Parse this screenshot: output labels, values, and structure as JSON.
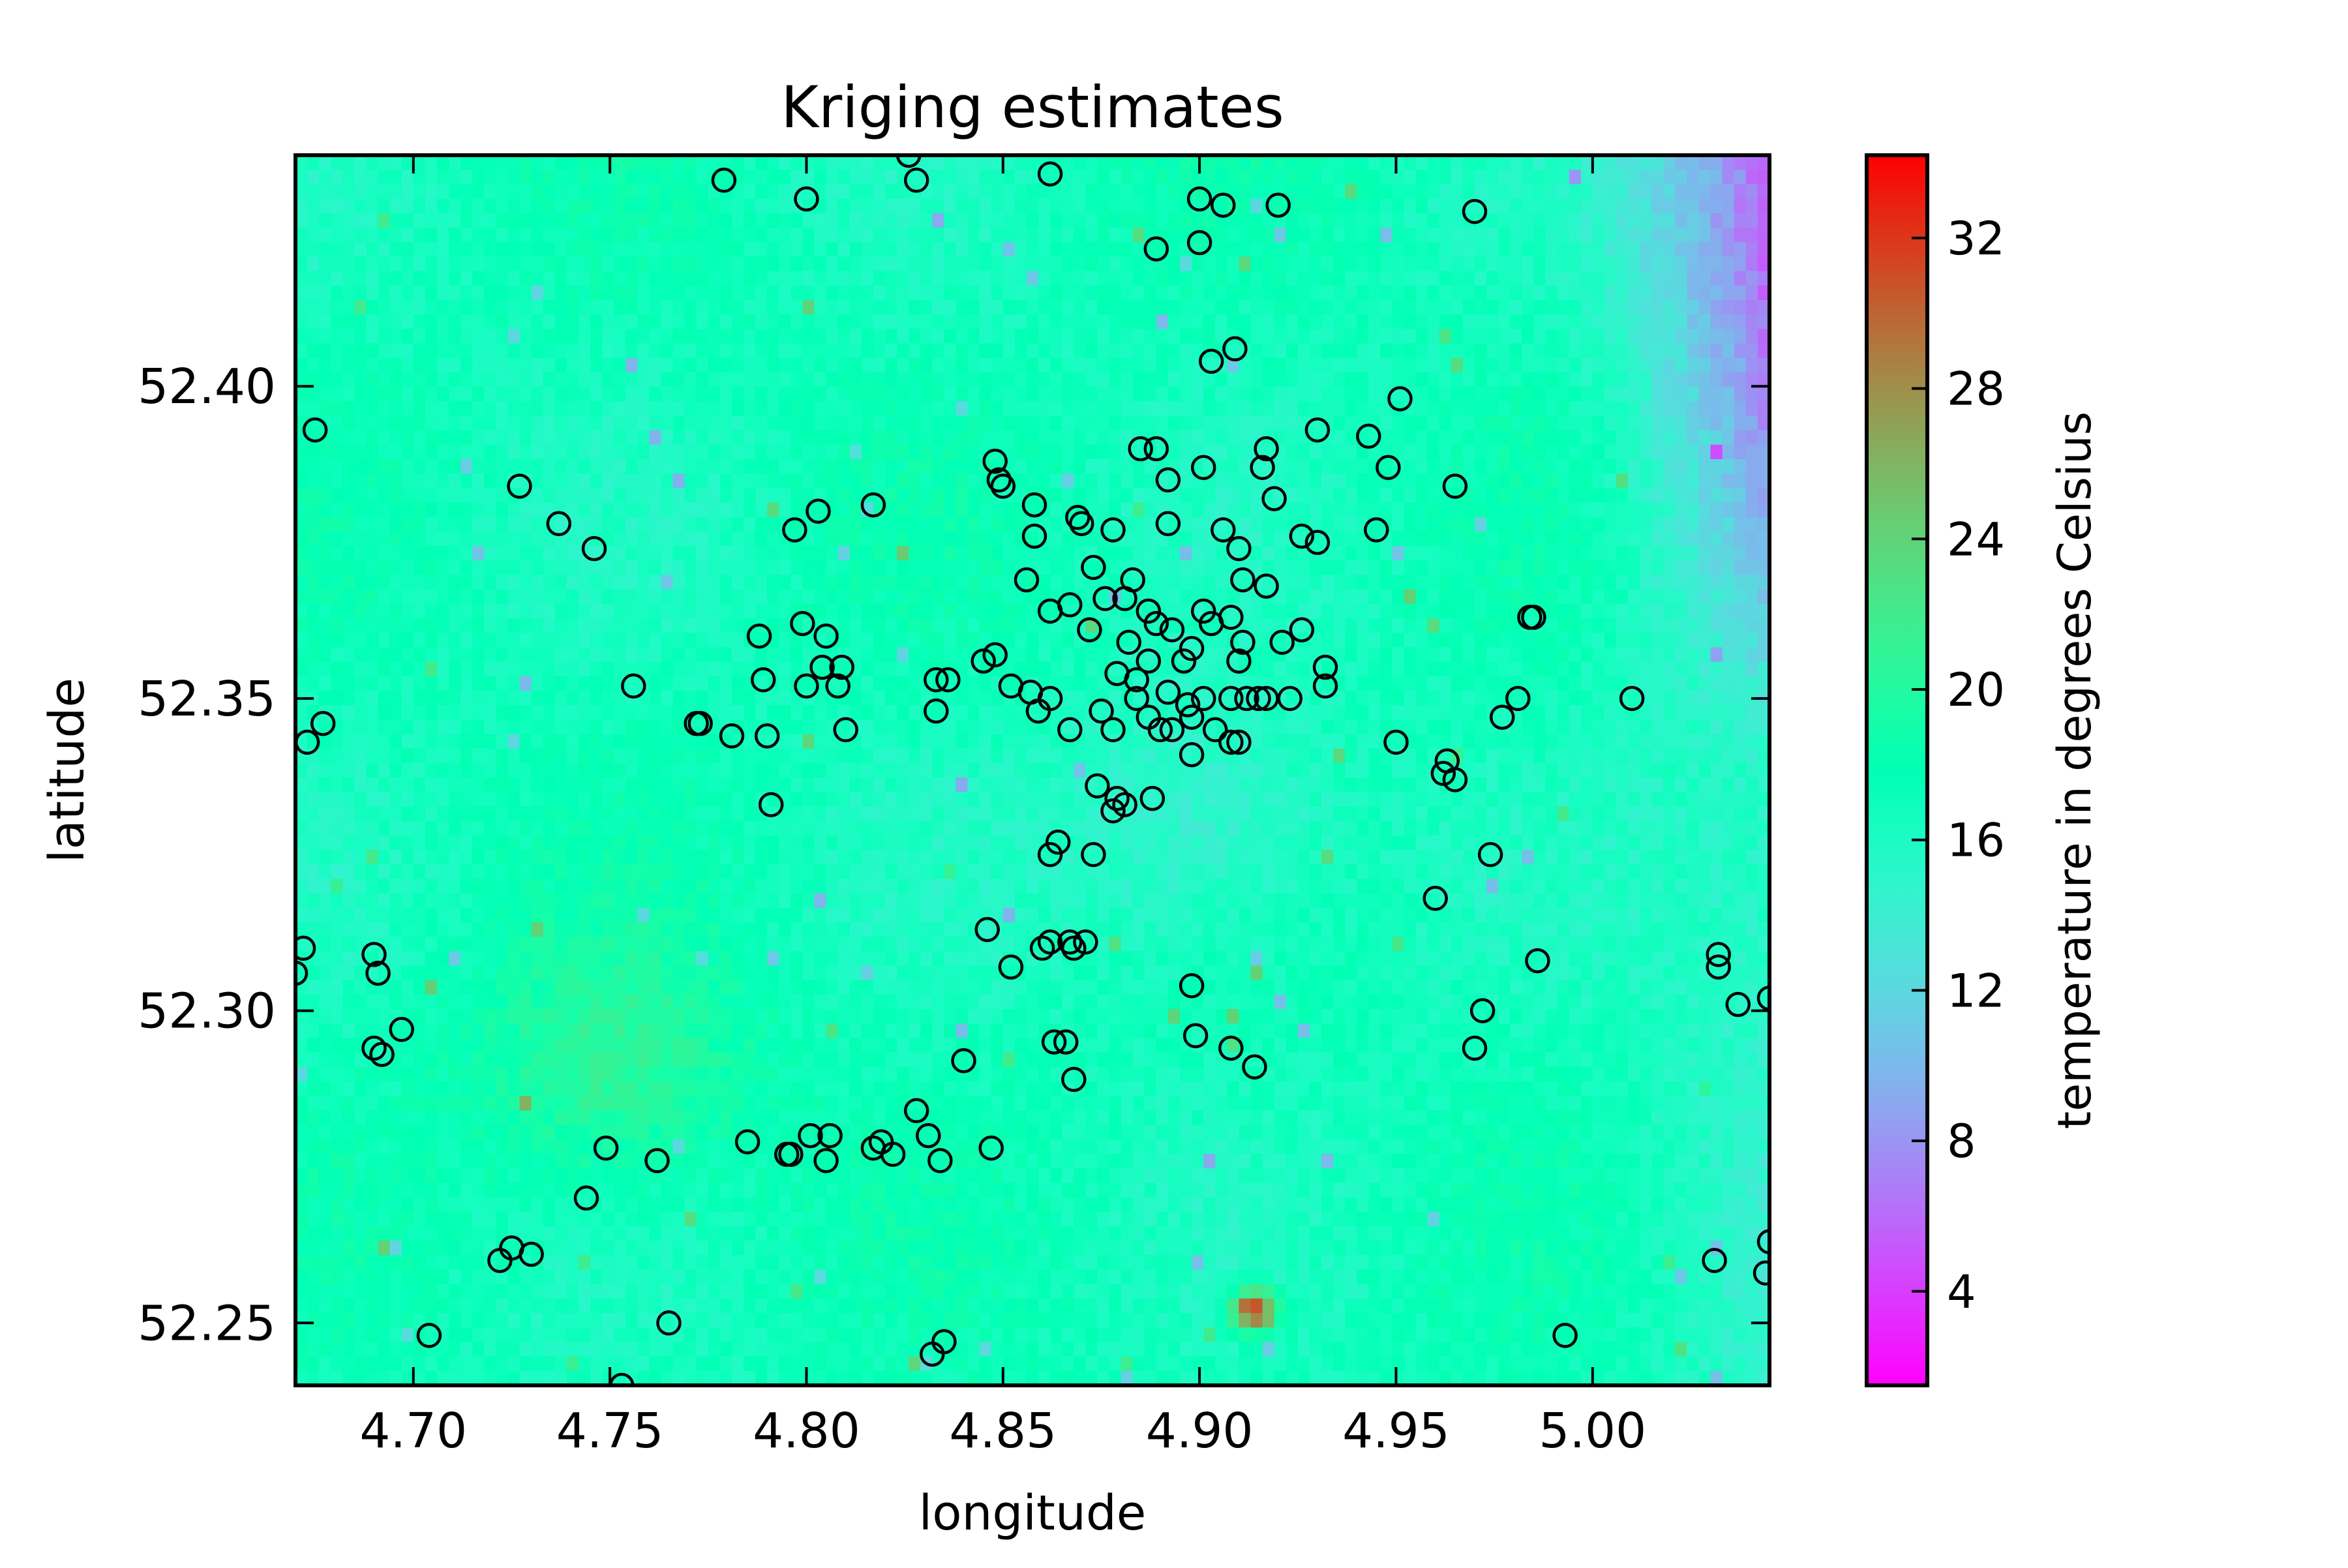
{
  "chart_data": {
    "type": "heatmap",
    "title": "Kriging estimates",
    "xlabel": "longitude",
    "ylabel": "latitude",
    "xlim": [
      4.67,
      5.045
    ],
    "ylim": [
      52.24,
      52.437
    ],
    "xticks": [
      4.7,
      4.75,
      4.8,
      4.85,
      4.9,
      4.95,
      5.0
    ],
    "xtick_labels": [
      "4.70",
      "4.75",
      "4.80",
      "4.85",
      "4.90",
      "4.95",
      "5.00"
    ],
    "yticks": [
      52.25,
      52.3,
      52.35,
      52.4
    ],
    "ytick_labels": [
      "52.25",
      "52.30",
      "52.35",
      "52.40"
    ],
    "grid_resolution": {
      "nx": 125,
      "ny": 85
    },
    "colormap": "rainbow",
    "colorbar": {
      "label": "temperature in degrees Celsius",
      "range": [
        1.5,
        34.2
      ],
      "ticks": [
        4,
        8,
        12,
        16,
        20,
        24,
        28,
        32
      ],
      "tick_labels": [
        "4",
        "8",
        "12",
        "16",
        "20",
        "24",
        "28",
        "32"
      ]
    },
    "field_features": [
      {
        "kind": "cold-region",
        "lon_range": [
          4.985,
          5.045
        ],
        "lat_range": [
          52.34,
          52.437
        ],
        "min_value": 2.5
      },
      {
        "kind": "warm-patch",
        "lon": 4.75,
        "lat": 52.29,
        "value": 24
      },
      {
        "kind": "hot-spot",
        "lon": 4.914,
        "lat": 52.252,
        "value": 33
      },
      {
        "kind": "cool-patch",
        "lon": 4.9,
        "lat": 52.33,
        "value": 11
      }
    ],
    "stations": [
      [
        4.779,
        52.433
      ],
      [
        4.8,
        52.43
      ],
      [
        4.826,
        52.437
      ],
      [
        4.828,
        52.433
      ],
      [
        4.862,
        52.434
      ],
      [
        4.9,
        52.43
      ],
      [
        4.906,
        52.429
      ],
      [
        4.92,
        52.429
      ],
      [
        4.97,
        52.428
      ],
      [
        4.889,
        52.422
      ],
      [
        4.9,
        52.423
      ],
      [
        4.909,
        52.406
      ],
      [
        4.903,
        52.404
      ],
      [
        4.951,
        52.398
      ],
      [
        4.675,
        52.393
      ],
      [
        4.93,
        52.393
      ],
      [
        4.943,
        52.392
      ],
      [
        4.885,
        52.39
      ],
      [
        4.889,
        52.39
      ],
      [
        4.917,
        52.39
      ],
      [
        4.848,
        52.388
      ],
      [
        4.916,
        52.387
      ],
      [
        4.948,
        52.387
      ],
      [
        4.901,
        52.387
      ],
      [
        4.849,
        52.385
      ],
      [
        4.892,
        52.385
      ],
      [
        4.85,
        52.384
      ],
      [
        4.727,
        52.384
      ],
      [
        4.965,
        52.384
      ],
      [
        4.919,
        52.382
      ],
      [
        4.858,
        52.381
      ],
      [
        4.817,
        52.381
      ],
      [
        4.869,
        52.379
      ],
      [
        4.803,
        52.38
      ],
      [
        4.737,
        52.378
      ],
      [
        4.892,
        52.378
      ],
      [
        4.87,
        52.378
      ],
      [
        4.878,
        52.377
      ],
      [
        4.906,
        52.377
      ],
      [
        4.797,
        52.377
      ],
      [
        4.945,
        52.377
      ],
      [
        4.858,
        52.376
      ],
      [
        4.926,
        52.376
      ],
      [
        4.93,
        52.375
      ],
      [
        4.746,
        52.374
      ],
      [
        4.91,
        52.374
      ],
      [
        4.873,
        52.371
      ],
      [
        4.856,
        52.369
      ],
      [
        4.911,
        52.369
      ],
      [
        4.917,
        52.368
      ],
      [
        4.883,
        52.369
      ],
      [
        4.876,
        52.366
      ],
      [
        4.881,
        52.366
      ],
      [
        4.867,
        52.365
      ],
      [
        4.862,
        52.364
      ],
      [
        4.887,
        52.364
      ],
      [
        4.901,
        52.364
      ],
      [
        4.908,
        52.363
      ],
      [
        4.893,
        52.361
      ],
      [
        4.799,
        52.362
      ],
      [
        4.889,
        52.362
      ],
      [
        4.903,
        52.362
      ],
      [
        4.926,
        52.361
      ],
      [
        4.984,
        52.363
      ],
      [
        4.985,
        52.363
      ],
      [
        4.872,
        52.361
      ],
      [
        4.788,
        52.36
      ],
      [
        4.805,
        52.36
      ],
      [
        4.911,
        52.359
      ],
      [
        4.921,
        52.359
      ],
      [
        4.882,
        52.359
      ],
      [
        4.898,
        52.358
      ],
      [
        4.896,
        52.356
      ],
      [
        4.848,
        52.357
      ],
      [
        4.845,
        52.356
      ],
      [
        4.887,
        52.356
      ],
      [
        4.804,
        52.355
      ],
      [
        4.809,
        52.355
      ],
      [
        4.91,
        52.356
      ],
      [
        4.932,
        52.355
      ],
      [
        4.836,
        52.353
      ],
      [
        4.833,
        52.353
      ],
      [
        4.879,
        52.354
      ],
      [
        4.884,
        52.353
      ],
      [
        4.789,
        52.353
      ],
      [
        4.932,
        52.352
      ],
      [
        4.8,
        52.352
      ],
      [
        4.808,
        52.352
      ],
      [
        4.852,
        52.352
      ],
      [
        4.857,
        52.351
      ],
      [
        4.892,
        52.351
      ],
      [
        4.901,
        52.35
      ],
      [
        4.908,
        52.35
      ],
      [
        4.912,
        52.35
      ],
      [
        4.915,
        52.35
      ],
      [
        4.917,
        52.35
      ],
      [
        4.923,
        52.35
      ],
      [
        4.862,
        52.35
      ],
      [
        4.756,
        52.352
      ],
      [
        4.884,
        52.35
      ],
      [
        4.897,
        52.349
      ],
      [
        5.01,
        52.35
      ],
      [
        4.981,
        52.35
      ],
      [
        4.859,
        52.348
      ],
      [
        4.875,
        52.348
      ],
      [
        4.833,
        52.348
      ],
      [
        4.977,
        52.347
      ],
      [
        4.887,
        52.347
      ],
      [
        4.898,
        52.347
      ],
      [
        4.772,
        52.346
      ],
      [
        4.773,
        52.346
      ],
      [
        4.677,
        52.346
      ],
      [
        4.81,
        52.345
      ],
      [
        4.867,
        52.345
      ],
      [
        4.878,
        52.345
      ],
      [
        4.89,
        52.345
      ],
      [
        4.893,
        52.345
      ],
      [
        4.904,
        52.345
      ],
      [
        4.781,
        52.344
      ],
      [
        4.79,
        52.344
      ],
      [
        4.673,
        52.343
      ],
      [
        4.908,
        52.343
      ],
      [
        4.91,
        52.343
      ],
      [
        4.95,
        52.343
      ],
      [
        4.898,
        52.341
      ],
      [
        4.963,
        52.34
      ],
      [
        4.962,
        52.338
      ],
      [
        4.965,
        52.337
      ],
      [
        4.874,
        52.336
      ],
      [
        4.879,
        52.334
      ],
      [
        4.888,
        52.334
      ],
      [
        4.791,
        52.333
      ],
      [
        4.881,
        52.333
      ],
      [
        4.878,
        52.332
      ],
      [
        4.864,
        52.327
      ],
      [
        4.862,
        52.325
      ],
      [
        4.873,
        52.325
      ],
      [
        4.974,
        52.325
      ],
      [
        4.96,
        52.318
      ],
      [
        4.846,
        52.313
      ],
      [
        4.862,
        52.311
      ],
      [
        4.867,
        52.311
      ],
      [
        4.871,
        52.311
      ],
      [
        4.868,
        52.31
      ],
      [
        4.86,
        52.31
      ],
      [
        4.672,
        52.31
      ],
      [
        4.69,
        52.309
      ],
      [
        5.032,
        52.309
      ],
      [
        4.986,
        52.308
      ],
      [
        4.852,
        52.307
      ],
      [
        5.032,
        52.307
      ],
      [
        4.691,
        52.306
      ],
      [
        4.67,
        52.306
      ],
      [
        4.898,
        52.304
      ],
      [
        5.045,
        52.302
      ],
      [
        5.037,
        52.301
      ],
      [
        4.972,
        52.3
      ],
      [
        4.697,
        52.297
      ],
      [
        4.899,
        52.296
      ],
      [
        4.863,
        52.295
      ],
      [
        4.866,
        52.295
      ],
      [
        4.69,
        52.294
      ],
      [
        4.908,
        52.294
      ],
      [
        4.97,
        52.294
      ],
      [
        4.692,
        52.293
      ],
      [
        4.84,
        52.292
      ],
      [
        4.914,
        52.291
      ],
      [
        4.868,
        52.289
      ],
      [
        4.828,
        52.284
      ],
      [
        4.801,
        52.28
      ],
      [
        4.806,
        52.28
      ],
      [
        4.819,
        52.279
      ],
      [
        4.831,
        52.28
      ],
      [
        4.785,
        52.279
      ],
      [
        4.749,
        52.278
      ],
      [
        4.795,
        52.277
      ],
      [
        4.796,
        52.277
      ],
      [
        4.817,
        52.278
      ],
      [
        4.822,
        52.277
      ],
      [
        4.847,
        52.278
      ],
      [
        4.805,
        52.276
      ],
      [
        4.834,
        52.276
      ],
      [
        4.762,
        52.276
      ],
      [
        4.744,
        52.27
      ],
      [
        5.045,
        52.263
      ],
      [
        4.725,
        52.262
      ],
      [
        4.722,
        52.26
      ],
      [
        4.73,
        52.261
      ],
      [
        5.031,
        52.26
      ],
      [
        5.044,
        52.258
      ],
      [
        4.765,
        52.25
      ],
      [
        4.704,
        52.248
      ],
      [
        4.993,
        52.248
      ],
      [
        4.835,
        52.247
      ],
      [
        4.832,
        52.245
      ],
      [
        4.753,
        52.24
      ]
    ]
  }
}
